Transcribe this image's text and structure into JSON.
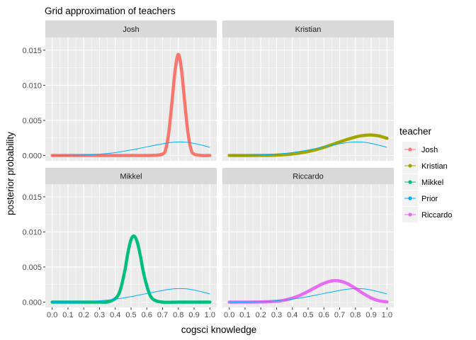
{
  "chart_data": {
    "type": "line",
    "title": "Grid approximation of teachers",
    "xlabel": "cogsci knowledge",
    "ylabel": "posterior probability",
    "xlim": [
      0,
      1
    ],
    "ylim": [
      0,
      0.0165
    ],
    "x_ticks": [
      0.0,
      0.1,
      0.2,
      0.3,
      0.4,
      0.5,
      0.6,
      0.7,
      0.8,
      0.9,
      1.0
    ],
    "x_tick_labels": [
      "0.0",
      "0.1",
      "0.2",
      "0.3",
      "0.4",
      "0.5",
      "0.6",
      "0.7",
      "0.8",
      "0.9",
      "1.0"
    ],
    "y_ticks": [
      0,
      0.005,
      0.01,
      0.015
    ],
    "y_tick_labels": [
      "0.000",
      "0.005",
      "0.010",
      "0.015"
    ],
    "grid": true,
    "legend": {
      "title": "teacher",
      "placement": "right",
      "entries": [
        "Josh",
        "Kristian",
        "Mikkel",
        "Prior",
        "Riccardo"
      ]
    },
    "colors": {
      "Josh": "#F8766D",
      "Kristian": "#A3A500",
      "Mikkel": "#00BF7D",
      "Prior": "#00B0F6",
      "Riccardo": "#E76BF3"
    },
    "facets": [
      {
        "label": "Josh",
        "series": "Josh",
        "x": [
          0.0,
          0.1,
          0.2,
          0.3,
          0.4,
          0.5,
          0.6,
          0.65,
          0.7,
          0.72,
          0.74,
          0.76,
          0.78,
          0.8,
          0.82,
          0.84,
          0.86,
          0.88,
          0.9,
          0.95,
          1.0
        ],
        "y": [
          0,
          0,
          0,
          0,
          0,
          0,
          0,
          2e-05,
          0.0002,
          0.0009,
          0.0034,
          0.0077,
          0.0122,
          0.0144,
          0.0122,
          0.0077,
          0.0034,
          0.0009,
          0.0002,
          0,
          0
        ]
      },
      {
        "label": "Kristian",
        "series": "Kristian",
        "x": [
          0.0,
          0.1,
          0.2,
          0.3,
          0.4,
          0.5,
          0.6,
          0.7,
          0.8,
          0.85,
          0.9,
          0.95,
          1.0
        ],
        "y": [
          0,
          0,
          1e-05,
          5e-05,
          0.00021,
          0.00056,
          0.00115,
          0.00193,
          0.00263,
          0.00284,
          0.00292,
          0.00278,
          0.00245
        ]
      },
      {
        "label": "Mikkel",
        "series": "Mikkel",
        "x": [
          0.0,
          0.1,
          0.2,
          0.3,
          0.35,
          0.4,
          0.43,
          0.46,
          0.48,
          0.5,
          0.52,
          0.54,
          0.56,
          0.58,
          0.61,
          0.64,
          0.7,
          0.8,
          0.9,
          1.0
        ],
        "y": [
          0,
          0,
          0,
          0,
          2e-05,
          0.0005,
          0.0016,
          0.0044,
          0.007,
          0.0089,
          0.0094,
          0.0085,
          0.0065,
          0.0041,
          0.0016,
          0.0004,
          0,
          0,
          0,
          0
        ]
      },
      {
        "label": "Riccardo",
        "series": "Riccardo",
        "x": [
          0.0,
          0.1,
          0.2,
          0.3,
          0.35,
          0.4,
          0.45,
          0.5,
          0.55,
          0.6,
          0.65,
          0.7,
          0.75,
          0.8,
          0.85,
          0.9,
          0.95,
          1.0
        ],
        "y": [
          0,
          0,
          2e-05,
          0.00012,
          0.00028,
          0.00056,
          0.00098,
          0.00153,
          0.00213,
          0.00268,
          0.00303,
          0.00301,
          0.00262,
          0.00196,
          0.00122,
          0.00059,
          0.00019,
          3e-05
        ]
      }
    ],
    "prior": {
      "name": "Prior",
      "x": [
        0.0,
        0.1,
        0.2,
        0.3,
        0.4,
        0.5,
        0.6,
        0.7,
        0.75,
        0.8,
        0.85,
        0.9,
        0.95,
        1.0
      ],
      "y": [
        0,
        1e-05,
        6e-05,
        0.00019,
        0.00042,
        0.00078,
        0.00123,
        0.00167,
        0.00184,
        0.00193,
        0.00189,
        0.00172,
        0.00146,
        0.00116
      ]
    }
  }
}
